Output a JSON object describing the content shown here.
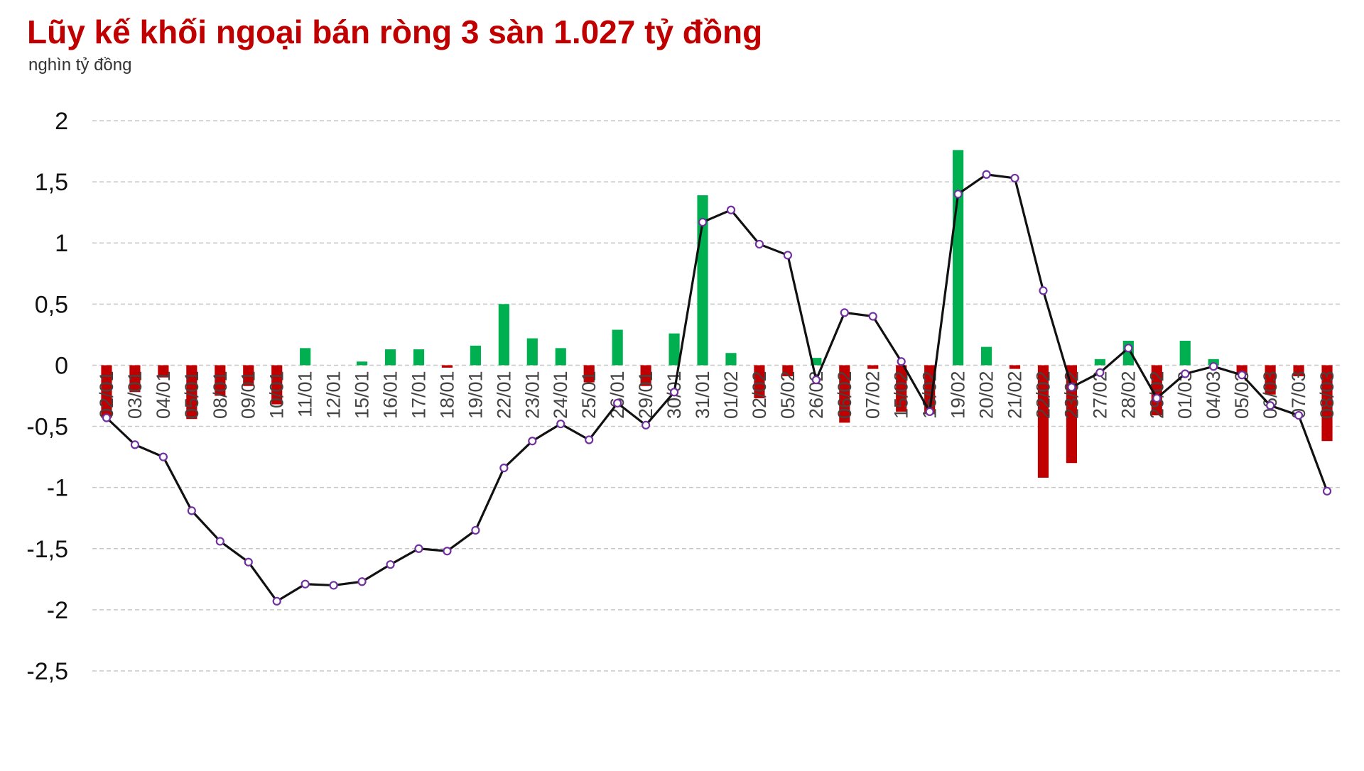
{
  "chart_data": {
    "type": "bar",
    "title": "Lũy kế khối ngoại bán ròng 3 sàn 1.027 tỷ đồng",
    "ylabel": "nghìn tỷ đồng",
    "ylim": [
      -2.5,
      2
    ],
    "yticks": [
      "-2,5",
      "-2",
      "-1,5",
      "-1",
      "-0,5",
      "0",
      "0,5",
      "1",
      "1,5",
      "2"
    ],
    "grid": true,
    "categories": [
      "02/01",
      "03/01",
      "04/01",
      "05/01",
      "08/01",
      "09/01",
      "10/01",
      "11/01",
      "12/01",
      "15/01",
      "16/01",
      "17/01",
      "18/01",
      "19/01",
      "22/01",
      "23/01",
      "24/01",
      "25/01",
      "26/01",
      "29/01",
      "30/01",
      "31/01",
      "01/02",
      "02/02",
      "05/02",
      "26/02",
      "06/02",
      "07/02",
      "15/02",
      "16/02",
      "19/02",
      "20/02",
      "21/02",
      "22/02",
      "23/02",
      "27/02",
      "28/02",
      "29/02",
      "01/03",
      "04/03",
      "05/03",
      "06/03",
      "07/03",
      "08/03"
    ],
    "series": [
      {
        "type": "bar",
        "values": [
          -0.43,
          -0.22,
          -0.1,
          -0.44,
          -0.25,
          -0.17,
          -0.32,
          0.14,
          0.0,
          0.03,
          0.13,
          0.13,
          -0.02,
          0.16,
          0.5,
          0.22,
          0.14,
          -0.14,
          0.29,
          -0.17,
          0.26,
          1.39,
          0.1,
          -0.27,
          -0.09,
          0.06,
          -0.47,
          -0.03,
          -0.38,
          -0.4,
          1.76,
          0.15,
          -0.03,
          -0.92,
          -0.8,
          0.05,
          0.2,
          -0.41,
          0.2,
          0.05,
          -0.08,
          -0.24,
          -0.09,
          -0.62
        ]
      },
      {
        "type": "line",
        "values": [
          -0.43,
          -0.65,
          -0.75,
          -1.19,
          -1.44,
          -1.61,
          -1.93,
          -1.79,
          -1.8,
          -1.77,
          -1.63,
          -1.5,
          -1.52,
          -1.35,
          -0.84,
          -0.62,
          -0.48,
          -0.61,
          -0.31,
          -0.49,
          -0.22,
          1.17,
          1.27,
          0.99,
          0.9,
          -0.12,
          0.43,
          0.4,
          0.03,
          -0.38,
          1.4,
          1.56,
          1.53,
          0.61,
          -0.18,
          -0.06,
          0.14,
          -0.27,
          -0.07,
          -0.01,
          -0.08,
          -0.33,
          -0.41,
          -1.03
        ]
      }
    ],
    "colors": {
      "positive": "#00b050",
      "negative": "#c00000",
      "line": "#111111",
      "marker_fill": "#ffffff",
      "marker_stroke": "#7030a0",
      "grid": "#c8c8c8",
      "title": "#c00000"
    }
  }
}
